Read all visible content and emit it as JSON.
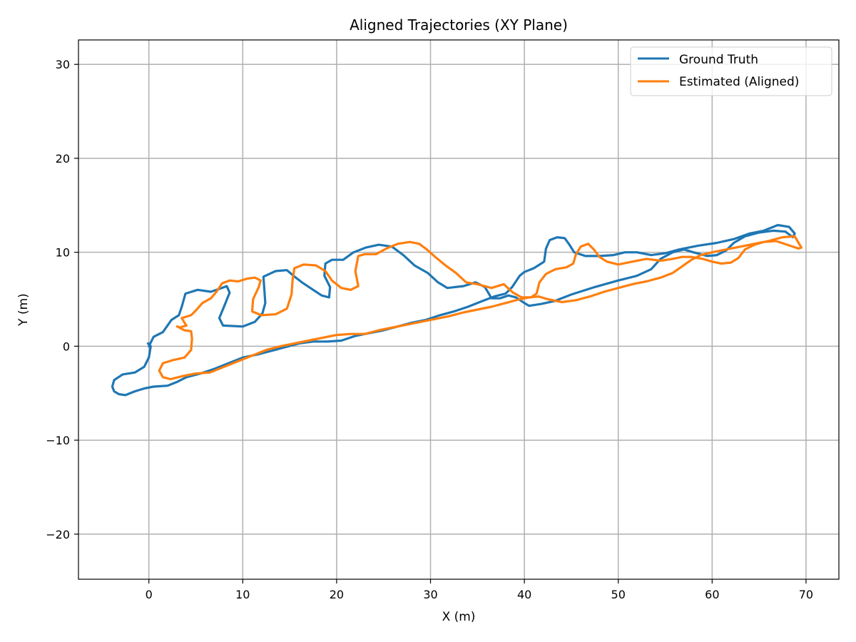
{
  "chart_data": {
    "type": "line",
    "title": "Aligned Trajectories (XY Plane)",
    "xlabel": "X (m)",
    "ylabel": "Y (m)",
    "xlim": [
      -7.5,
      73.5
    ],
    "ylim": [
      -24.8,
      32.6
    ],
    "xticks": [
      0,
      10,
      20,
      30,
      40,
      50,
      60,
      70
    ],
    "yticks": [
      -20,
      -10,
      0,
      10,
      20,
      30
    ],
    "grid": true,
    "legend_position": "top-right",
    "series": [
      {
        "name": "Ground Truth",
        "color": "#1f77b4",
        "points": [
          [
            0.0,
            0.0
          ],
          [
            0.5,
            1.0
          ],
          [
            1.5,
            1.5
          ],
          [
            2.4,
            2.8
          ],
          [
            3.2,
            3.3
          ],
          [
            3.5,
            4.2
          ],
          [
            3.9,
            5.6
          ],
          [
            5.2,
            6.0
          ],
          [
            6.6,
            5.8
          ],
          [
            7.5,
            6.1
          ],
          [
            8.3,
            6.4
          ],
          [
            8.6,
            5.7
          ],
          [
            8.0,
            4.2
          ],
          [
            7.5,
            3.0
          ],
          [
            7.9,
            2.2
          ],
          [
            10.0,
            2.1
          ],
          [
            11.3,
            2.6
          ],
          [
            12.1,
            3.5
          ],
          [
            12.4,
            4.6
          ],
          [
            12.3,
            6.0
          ],
          [
            12.2,
            7.4
          ],
          [
            13.5,
            8.0
          ],
          [
            14.7,
            8.1
          ],
          [
            15.4,
            7.5
          ],
          [
            16.3,
            6.8
          ],
          [
            17.5,
            6.0
          ],
          [
            18.4,
            5.4
          ],
          [
            19.2,
            5.2
          ],
          [
            19.3,
            6.3
          ],
          [
            18.7,
            7.5
          ],
          [
            18.8,
            8.8
          ],
          [
            19.5,
            9.2
          ],
          [
            20.7,
            9.2
          ],
          [
            21.8,
            10.0
          ],
          [
            23.1,
            10.5
          ],
          [
            24.5,
            10.8
          ],
          [
            25.9,
            10.6
          ],
          [
            27.1,
            9.7
          ],
          [
            28.3,
            8.6
          ],
          [
            29.7,
            7.8
          ],
          [
            30.8,
            6.8
          ],
          [
            31.8,
            6.2
          ],
          [
            33.5,
            6.4
          ],
          [
            34.8,
            6.8
          ],
          [
            35.8,
            6.3
          ],
          [
            36.5,
            5.1
          ],
          [
            37.4,
            5.1
          ],
          [
            38.3,
            5.4
          ],
          [
            39.1,
            5.2
          ],
          [
            40.0,
            4.6
          ],
          [
            40.5,
            4.3
          ],
          [
            41.8,
            4.5
          ],
          [
            43.2,
            4.8
          ],
          [
            45.0,
            5.5
          ],
          [
            47.5,
            6.3
          ],
          [
            50.0,
            7.0
          ],
          [
            52.0,
            7.5
          ],
          [
            53.5,
            8.2
          ],
          [
            54.5,
            9.3
          ],
          [
            55.8,
            10.0
          ],
          [
            57.0,
            10.3
          ],
          [
            58.0,
            10.0
          ],
          [
            59.5,
            9.6
          ],
          [
            60.5,
            9.7
          ],
          [
            61.5,
            10.2
          ],
          [
            62.3,
            11.0
          ],
          [
            63.5,
            11.7
          ],
          [
            65.0,
            12.1
          ],
          [
            66.5,
            12.3
          ],
          [
            67.8,
            12.2
          ],
          [
            68.6,
            11.6
          ],
          [
            68.8,
            12.0
          ],
          [
            68.2,
            12.7
          ],
          [
            67.0,
            12.9
          ],
          [
            65.5,
            12.3
          ],
          [
            64.0,
            12.0
          ],
          [
            62.3,
            11.4
          ],
          [
            60.5,
            11.0
          ],
          [
            58.5,
            10.7
          ],
          [
            56.5,
            10.3
          ],
          [
            55.0,
            9.9
          ],
          [
            53.5,
            9.7
          ],
          [
            52.0,
            10.0
          ],
          [
            50.7,
            10.0
          ],
          [
            49.5,
            9.7
          ],
          [
            48.0,
            9.6
          ],
          [
            46.5,
            9.6
          ],
          [
            45.3,
            10.0
          ],
          [
            44.8,
            10.8
          ],
          [
            44.3,
            11.5
          ],
          [
            43.5,
            11.6
          ],
          [
            42.7,
            11.3
          ],
          [
            42.3,
            10.4
          ],
          [
            42.1,
            9.0
          ],
          [
            41.0,
            8.3
          ],
          [
            40.0,
            7.9
          ],
          [
            39.5,
            7.5
          ],
          [
            38.7,
            6.3
          ],
          [
            38.0,
            5.6
          ],
          [
            36.8,
            5.3
          ],
          [
            35.5,
            4.8
          ],
          [
            34.0,
            4.2
          ],
          [
            32.5,
            3.7
          ],
          [
            31.0,
            3.3
          ],
          [
            29.5,
            2.8
          ],
          [
            28.0,
            2.5
          ],
          [
            26.5,
            2.1
          ],
          [
            25.0,
            1.7
          ],
          [
            23.5,
            1.4
          ],
          [
            22.0,
            1.1
          ],
          [
            20.5,
            0.6
          ],
          [
            19.0,
            0.5
          ],
          [
            17.5,
            0.5
          ],
          [
            16.0,
            0.3
          ],
          [
            14.5,
            -0.1
          ],
          [
            13.0,
            -0.5
          ],
          [
            11.5,
            -0.9
          ],
          [
            10.0,
            -1.2
          ],
          [
            8.5,
            -1.8
          ],
          [
            7.0,
            -2.4
          ],
          [
            5.5,
            -2.9
          ],
          [
            4.0,
            -3.3
          ],
          [
            3.0,
            -3.8
          ],
          [
            2.0,
            -4.2
          ],
          [
            0.5,
            -4.3
          ],
          [
            -0.5,
            -4.5
          ],
          [
            -1.5,
            -4.8
          ],
          [
            -2.5,
            -5.2
          ],
          [
            -3.2,
            -5.1
          ],
          [
            -3.7,
            -4.8
          ],
          [
            -3.9,
            -4.3
          ],
          [
            -3.7,
            -3.6
          ],
          [
            -2.8,
            -3.0
          ],
          [
            -1.5,
            -2.8
          ],
          [
            -0.5,
            -2.2
          ],
          [
            0.0,
            -1.2
          ],
          [
            0.2,
            0.0
          ],
          [
            -0.1,
            0.3
          ]
        ]
      },
      {
        "name": "Estimated (Aligned)",
        "color": "#ff7f0e",
        "points": [
          [
            3.2,
            2.0
          ],
          [
            3.8,
            1.7
          ],
          [
            4.5,
            1.6
          ],
          [
            4.6,
            0.8
          ],
          [
            4.5,
            -0.4
          ],
          [
            3.8,
            -1.2
          ],
          [
            2.5,
            -1.5
          ],
          [
            1.5,
            -1.8
          ],
          [
            1.1,
            -2.6
          ],
          [
            1.5,
            -3.3
          ],
          [
            2.3,
            -3.5
          ],
          [
            3.5,
            -3.2
          ],
          [
            5.0,
            -2.9
          ],
          [
            6.5,
            -2.8
          ],
          [
            8.0,
            -2.2
          ],
          [
            9.5,
            -1.6
          ],
          [
            11.0,
            -1.0
          ],
          [
            12.5,
            -0.4
          ],
          [
            14.0,
            0.0
          ],
          [
            15.5,
            0.3
          ],
          [
            17.0,
            0.6
          ],
          [
            18.5,
            0.9
          ],
          [
            20.0,
            1.2
          ],
          [
            21.5,
            1.3
          ],
          [
            23.0,
            1.3
          ],
          [
            24.5,
            1.7
          ],
          [
            26.0,
            2.0
          ],
          [
            27.5,
            2.3
          ],
          [
            29.0,
            2.6
          ],
          [
            30.5,
            2.9
          ],
          [
            32.0,
            3.2
          ],
          [
            33.5,
            3.6
          ],
          [
            35.0,
            3.9
          ],
          [
            36.5,
            4.2
          ],
          [
            38.0,
            4.6
          ],
          [
            39.5,
            5.0
          ],
          [
            40.5,
            5.2
          ],
          [
            41.5,
            5.3
          ],
          [
            42.5,
            5.0
          ],
          [
            44.0,
            4.7
          ],
          [
            45.5,
            4.9
          ],
          [
            47.0,
            5.3
          ],
          [
            48.5,
            5.8
          ],
          [
            50.0,
            6.2
          ],
          [
            51.5,
            6.6
          ],
          [
            53.0,
            6.9
          ],
          [
            54.5,
            7.3
          ],
          [
            55.8,
            7.8
          ],
          [
            56.8,
            8.5
          ],
          [
            57.8,
            9.2
          ],
          [
            58.8,
            9.7
          ],
          [
            60.0,
            10.0
          ],
          [
            61.5,
            10.3
          ],
          [
            63.0,
            10.6
          ],
          [
            64.5,
            10.9
          ],
          [
            66.0,
            11.2
          ],
          [
            67.5,
            11.6
          ],
          [
            68.8,
            11.7
          ],
          [
            69.5,
            10.5
          ],
          [
            69.2,
            10.4
          ],
          [
            68.0,
            10.8
          ],
          [
            66.8,
            11.2
          ],
          [
            65.5,
            11.1
          ],
          [
            64.5,
            10.8
          ],
          [
            63.5,
            10.3
          ],
          [
            62.8,
            9.4
          ],
          [
            62.0,
            8.9
          ],
          [
            61.0,
            8.8
          ],
          [
            60.0,
            9.0
          ],
          [
            59.0,
            9.3
          ],
          [
            57.8,
            9.5
          ],
          [
            56.8,
            9.5
          ],
          [
            55.8,
            9.3
          ],
          [
            54.5,
            9.1
          ],
          [
            53.0,
            9.3
          ],
          [
            51.5,
            9.0
          ],
          [
            50.0,
            8.7
          ],
          [
            48.8,
            9.0
          ],
          [
            48.0,
            9.5
          ],
          [
            47.4,
            10.3
          ],
          [
            46.8,
            10.9
          ],
          [
            46.0,
            10.6
          ],
          [
            45.5,
            9.8
          ],
          [
            45.2,
            8.8
          ],
          [
            44.5,
            8.4
          ],
          [
            43.3,
            8.2
          ],
          [
            42.3,
            7.7
          ],
          [
            41.6,
            6.8
          ],
          [
            41.3,
            5.6
          ],
          [
            40.7,
            5.2
          ],
          [
            39.7,
            5.2
          ],
          [
            38.8,
            5.7
          ],
          [
            37.8,
            6.6
          ],
          [
            36.5,
            6.2
          ],
          [
            35.0,
            6.6
          ],
          [
            33.8,
            6.8
          ],
          [
            32.7,
            7.8
          ],
          [
            31.6,
            8.6
          ],
          [
            30.5,
            9.5
          ],
          [
            29.6,
            10.3
          ],
          [
            28.8,
            10.9
          ],
          [
            27.8,
            11.1
          ],
          [
            26.5,
            10.9
          ],
          [
            25.3,
            10.4
          ],
          [
            24.2,
            9.8
          ],
          [
            23.0,
            9.8
          ],
          [
            22.3,
            9.6
          ],
          [
            22.0,
            8.0
          ],
          [
            22.3,
            6.4
          ],
          [
            21.5,
            6.0
          ],
          [
            20.5,
            6.2
          ],
          [
            19.5,
            7.0
          ],
          [
            18.8,
            8.0
          ],
          [
            17.8,
            8.6
          ],
          [
            16.5,
            8.7
          ],
          [
            15.5,
            8.3
          ],
          [
            15.3,
            7.0
          ],
          [
            15.2,
            5.5
          ],
          [
            14.7,
            4.0
          ],
          [
            13.5,
            3.4
          ],
          [
            12.0,
            3.3
          ],
          [
            11.0,
            3.7
          ],
          [
            11.1,
            5.0
          ],
          [
            11.7,
            6.3
          ],
          [
            11.9,
            7.0
          ],
          [
            11.3,
            7.3
          ],
          [
            10.5,
            7.2
          ],
          [
            9.5,
            6.9
          ],
          [
            8.6,
            7.0
          ],
          [
            7.8,
            6.7
          ],
          [
            7.2,
            5.8
          ],
          [
            6.6,
            5.1
          ],
          [
            5.7,
            4.6
          ],
          [
            5.0,
            3.8
          ],
          [
            4.5,
            3.3
          ],
          [
            3.5,
            3.0
          ],
          [
            3.8,
            2.5
          ],
          [
            4.0,
            2.2
          ],
          [
            3.3,
            2.0
          ],
          [
            3.0,
            2.1
          ]
        ]
      }
    ]
  }
}
